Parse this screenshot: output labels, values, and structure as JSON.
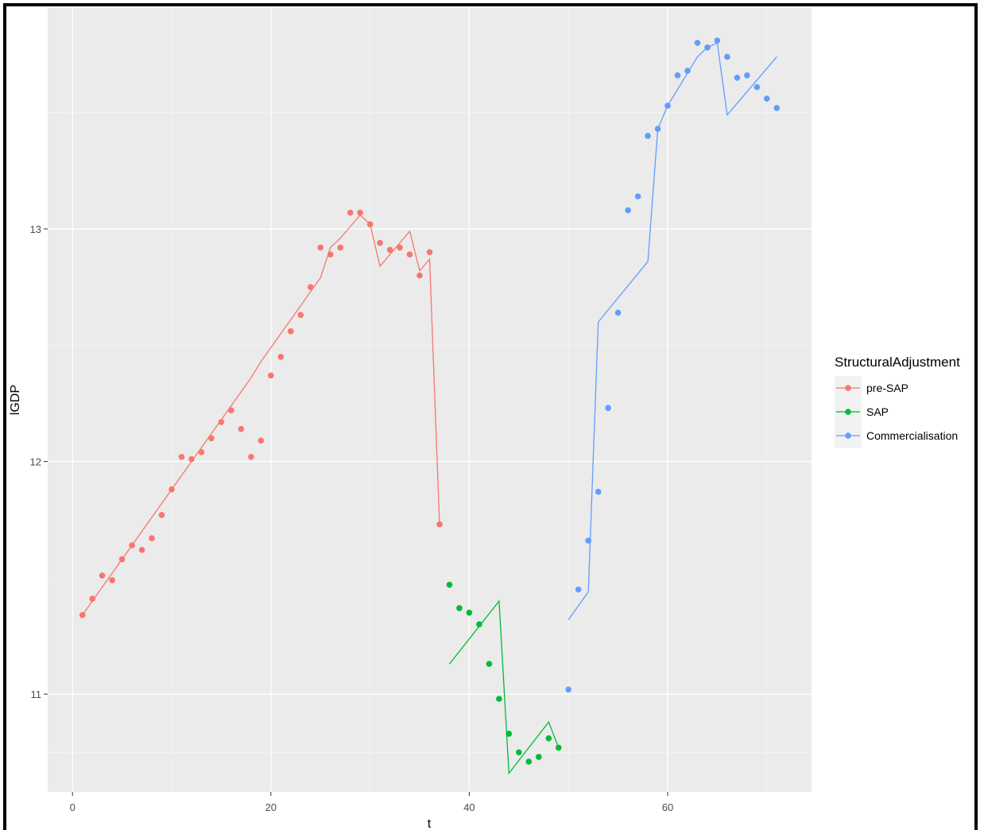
{
  "chart_data": {
    "type": "scatter",
    "xlabel": "t",
    "ylabel": "lGDP",
    "xlim": [
      -2.5,
      74.5
    ],
    "ylim": [
      10.58,
      13.95
    ],
    "x_ticks": [
      0,
      20,
      40,
      60
    ],
    "y_ticks": [
      11,
      12,
      13
    ],
    "grid": true,
    "legend_title": "StructuralAdjustment",
    "legend_position": "right",
    "series": [
      {
        "name": "pre-SAP",
        "color": "#F8766D",
        "points": [
          [
            1,
            11.34
          ],
          [
            2,
            11.41
          ],
          [
            3,
            11.51
          ],
          [
            4,
            11.49
          ],
          [
            5,
            11.58
          ],
          [
            6,
            11.64
          ],
          [
            7,
            11.62
          ],
          [
            8,
            11.67
          ],
          [
            9,
            11.77
          ],
          [
            10,
            11.88
          ],
          [
            11,
            12.02
          ],
          [
            12,
            12.01
          ],
          [
            13,
            12.04
          ],
          [
            14,
            12.1
          ],
          [
            15,
            12.17
          ],
          [
            16,
            12.22
          ],
          [
            17,
            12.14
          ],
          [
            18,
            12.02
          ],
          [
            19,
            12.09
          ],
          [
            20,
            12.37
          ],
          [
            21,
            12.45
          ],
          [
            22,
            12.56
          ],
          [
            23,
            12.63
          ],
          [
            24,
            12.75
          ],
          [
            25,
            12.92
          ],
          [
            26,
            12.89
          ],
          [
            27,
            12.92
          ],
          [
            28,
            13.07
          ],
          [
            29,
            13.07
          ],
          [
            30,
            13.02
          ],
          [
            31,
            12.94
          ],
          [
            32,
            12.91
          ],
          [
            33,
            12.92
          ],
          [
            34,
            12.89
          ],
          [
            35,
            12.8
          ],
          [
            36,
            12.9
          ],
          [
            37,
            11.73
          ]
        ],
        "fitted": [
          [
            1,
            11.34
          ],
          [
            2,
            11.4
          ],
          [
            3,
            11.46
          ],
          [
            4,
            11.52
          ],
          [
            5,
            11.58
          ],
          [
            6,
            11.64
          ],
          [
            7,
            11.7
          ],
          [
            8,
            11.76
          ],
          [
            9,
            11.82
          ],
          [
            10,
            11.88
          ],
          [
            11,
            11.94
          ],
          [
            12,
            12.0
          ],
          [
            13,
            12.06
          ],
          [
            14,
            12.12
          ],
          [
            15,
            12.18
          ],
          [
            16,
            12.24
          ],
          [
            17,
            12.3
          ],
          [
            18,
            12.36
          ],
          [
            19,
            12.43
          ],
          [
            20,
            12.49
          ],
          [
            21,
            12.55
          ],
          [
            22,
            12.61
          ],
          [
            23,
            12.67
          ],
          [
            24,
            12.73
          ],
          [
            25,
            12.79
          ],
          [
            26,
            12.92
          ],
          [
            27,
            12.96
          ],
          [
            28,
            13.01
          ],
          [
            29,
            13.06
          ],
          [
            30,
            13.02
          ],
          [
            31,
            12.84
          ],
          [
            32,
            12.89
          ],
          [
            33,
            12.94
          ],
          [
            34,
            12.99
          ],
          [
            35,
            12.82
          ],
          [
            36,
            12.87
          ],
          [
            37,
            11.73
          ]
        ]
      },
      {
        "name": "SAP",
        "color": "#00BA38",
        "points": [
          [
            38,
            11.47
          ],
          [
            39,
            11.37
          ],
          [
            40,
            11.35
          ],
          [
            41,
            11.3
          ],
          [
            42,
            11.13
          ],
          [
            43,
            10.98
          ],
          [
            44,
            10.83
          ],
          [
            45,
            10.75
          ],
          [
            46,
            10.71
          ],
          [
            47,
            10.73
          ],
          [
            48,
            10.81
          ],
          [
            49,
            10.77
          ]
        ],
        "fitted": [
          [
            38,
            11.13
          ],
          [
            43,
            11.4
          ],
          [
            44,
            10.66
          ],
          [
            48,
            10.88
          ],
          [
            49,
            10.77
          ]
        ]
      },
      {
        "name": "Commercialisation",
        "color": "#619CFF",
        "points": [
          [
            50,
            11.02
          ],
          [
            51,
            11.45
          ],
          [
            52,
            11.66
          ],
          [
            53,
            11.87
          ],
          [
            54,
            12.23
          ],
          [
            55,
            12.64
          ],
          [
            56,
            13.08
          ],
          [
            57,
            13.14
          ],
          [
            58,
            13.4
          ],
          [
            59,
            13.43
          ],
          [
            60,
            13.53
          ],
          [
            61,
            13.66
          ],
          [
            62,
            13.68
          ],
          [
            63,
            13.8
          ],
          [
            64,
            13.78
          ],
          [
            65,
            13.81
          ],
          [
            66,
            13.74
          ],
          [
            67,
            13.65
          ],
          [
            68,
            13.66
          ],
          [
            69,
            13.61
          ],
          [
            70,
            13.56
          ],
          [
            71,
            13.52
          ]
        ],
        "fitted": [
          [
            50,
            11.32
          ],
          [
            52,
            11.44
          ],
          [
            53,
            12.6
          ],
          [
            58,
            12.86
          ],
          [
            59,
            13.43
          ],
          [
            60,
            13.53
          ],
          [
            63,
            13.74
          ],
          [
            64,
            13.78
          ],
          [
            65,
            13.8
          ],
          [
            66,
            13.49
          ],
          [
            71,
            13.74
          ]
        ]
      }
    ]
  }
}
